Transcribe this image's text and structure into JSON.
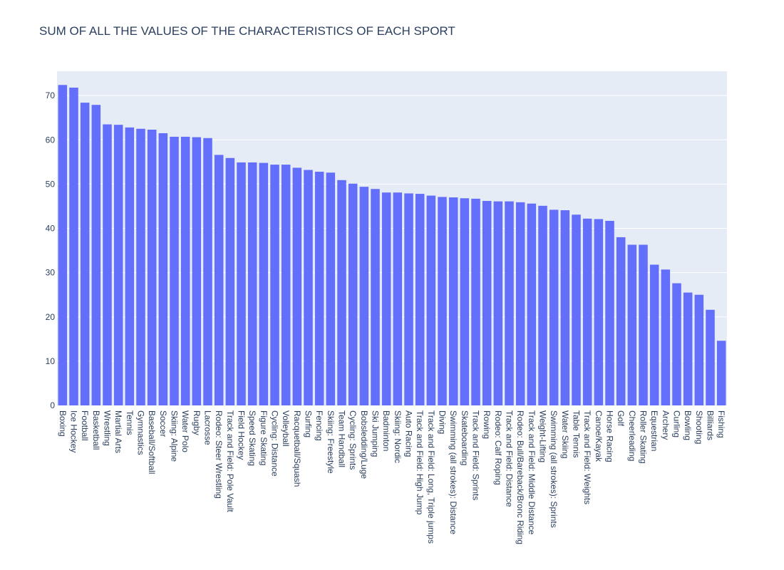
{
  "chart_data": {
    "type": "bar",
    "title": "SUM OF ALL THE VALUES OF THE CHARACTERISTICS OF EACH SPORT",
    "xlabel": "",
    "ylabel": "",
    "ylim": [
      0,
      75.5
    ],
    "yticks": [
      0,
      10,
      20,
      30,
      40,
      50,
      60,
      70
    ],
    "grid": true,
    "legend": "none",
    "colors": {
      "bar": "#636efa",
      "plot_bg": "#e5ecf6",
      "grid": "#ffffff",
      "text": "#2a3f5f"
    },
    "categories": [
      "Boxing",
      "Ice Hockey",
      "Football",
      "Basketball",
      "Wrestling",
      "Martial Arts",
      "Tennis",
      "Gymnastics",
      "Baseball/Softball",
      "Soccer",
      "Skiing: Alpine",
      "Water Polo",
      "Rugby",
      "Lacrosse",
      "Rodeo: Steer Wrestling",
      "Track and Field: Pole Vault",
      "Field Hockey",
      "Speed Skating",
      "Figure Skating",
      "Cycling: Distance",
      "Volleyball",
      "Racquetball/Squash",
      "Surfing",
      "Fencing",
      "Skiing: Freestyle",
      "Team Handball",
      "Cycling: Sprints",
      "Bobsledding/Luge",
      "Ski Jumping",
      "Badminton",
      "Skiing: Nordic",
      "Auto Racing",
      "Track and Field: High Jump",
      "Track and Field: Long, Triple jumps",
      "Diving",
      "Swimming (all strokes): Distance",
      "Skateboarding",
      "Track and Field: Sprints",
      "Rowing",
      "Rodeo: Calf Roping",
      "Track and Field: Distance",
      "Rodeo: Bull/Bareback/Bronc Riding",
      "Track and Field: Middle Distance",
      "Weight-Lifting",
      "Swimming (all strokes): Sprints",
      "Water Skiing",
      "Table Tennis",
      "Track and Field: Weights",
      "Canoe/Kayak",
      "Horse Racing",
      "Golf",
      "Cheerleading",
      "Roller Skating",
      "Equestrian",
      "Archery",
      "Curling",
      "Bowling",
      "Shooting",
      "Billiards",
      "Fishing"
    ],
    "values": [
      72.4,
      71.8,
      68.4,
      67.9,
      63.5,
      63.4,
      62.8,
      62.5,
      62.3,
      61.5,
      60.7,
      60.7,
      60.6,
      60.4,
      56.6,
      55.9,
      54.9,
      54.9,
      54.8,
      54.4,
      54.4,
      53.7,
      53.2,
      52.8,
      52.6,
      50.9,
      50.1,
      49.4,
      48.9,
      48.1,
      48.1,
      47.9,
      47.8,
      47.4,
      47.1,
      47.0,
      46.8,
      46.7,
      46.2,
      46.1,
      46.1,
      45.9,
      45.6,
      45.1,
      44.2,
      44.1,
      43.1,
      42.2,
      42.1,
      41.7,
      38.0,
      36.3,
      36.3,
      31.8,
      30.7,
      27.6,
      25.5,
      25.0,
      21.6,
      14.6
    ]
  }
}
